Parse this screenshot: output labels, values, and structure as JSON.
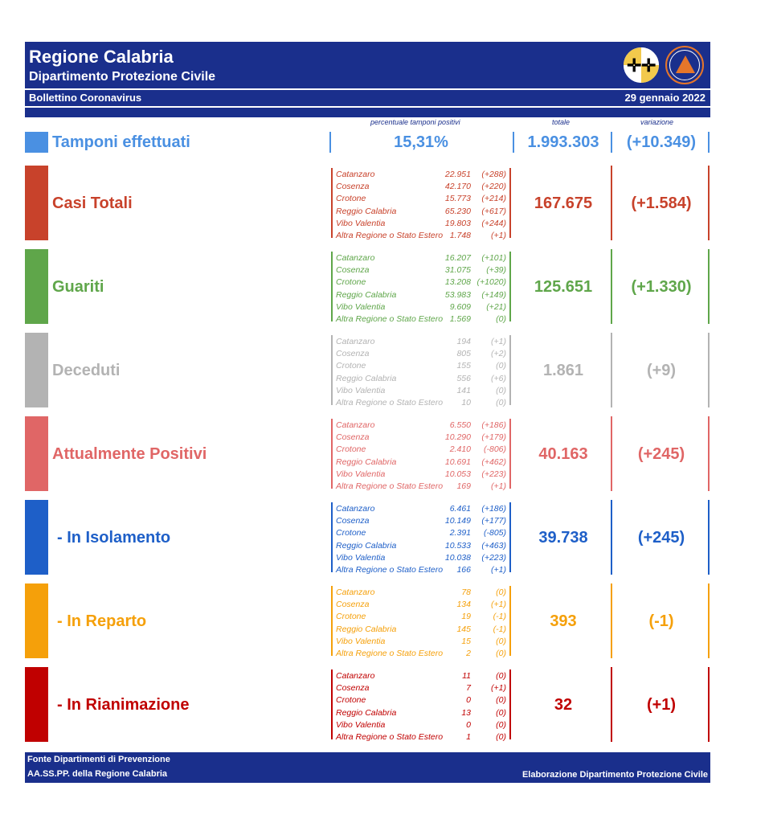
{
  "header": {
    "title": "Regione Calabria",
    "subtitle": "Dipartimento Protezione Civile",
    "bulletin": "Bollettino Coronavirus",
    "date": "29 gennaio 2022",
    "logo_text": "PROTEZIONE CIVILE"
  },
  "columns": {
    "pct_label": "percentuale tamponi positivi",
    "total_label": "totale",
    "variation_label": "variazione"
  },
  "tamponi": {
    "label": "Tamponi effettuati",
    "pct": "15,31%",
    "total": "1.993.303",
    "variation": "(+10.349)",
    "color": "#4a90e2"
  },
  "sections": [
    {
      "label": "Casi Totali",
      "total": "167.675",
      "variation": "(+1.584)",
      "color": "#c8422b",
      "rows": [
        {
          "name": "Catanzaro",
          "value": "22.951",
          "delta": "(+288)"
        },
        {
          "name": "Cosenza",
          "value": "42.170",
          "delta": "(+220)"
        },
        {
          "name": "Crotone",
          "value": "15.773",
          "delta": "(+214)"
        },
        {
          "name": "Reggio Calabria",
          "value": "65.230",
          "delta": "(+617)"
        },
        {
          "name": "Vibo Valentia",
          "value": "19.803",
          "delta": "(+244)"
        },
        {
          "name": "Altra Regione o Stato Estero",
          "value": "1.748",
          "delta": "(+1)"
        }
      ]
    },
    {
      "label": "Guariti",
      "total": "125.651",
      "variation": "(+1.330)",
      "color": "#5fa64a",
      "rows": [
        {
          "name": "Catanzaro",
          "value": "16.207",
          "delta": "(+101)"
        },
        {
          "name": "Cosenza",
          "value": "31.075",
          "delta": "(+39)"
        },
        {
          "name": "Crotone",
          "value": "13.208",
          "delta": "(+1020)"
        },
        {
          "name": "Reggio Calabria",
          "value": "53.983",
          "delta": "(+149)"
        },
        {
          "name": "Vibo Valentia",
          "value": "9.609",
          "delta": "(+21)"
        },
        {
          "name": "Altra Regione o Stato Estero",
          "value": "1.569",
          "delta": "(0)"
        }
      ]
    },
    {
      "label": "Deceduti",
      "total": "1.861",
      "variation": "(+9)",
      "color": "#b3b3b3",
      "rows": [
        {
          "name": "Catanzaro",
          "value": "194",
          "delta": "(+1)"
        },
        {
          "name": "Cosenza",
          "value": "805",
          "delta": "(+2)"
        },
        {
          "name": "Crotone",
          "value": "155",
          "delta": "(0)"
        },
        {
          "name": "Reggio Calabria",
          "value": "556",
          "delta": "(+6)"
        },
        {
          "name": "Vibo Valentia",
          "value": "141",
          "delta": "(0)"
        },
        {
          "name": "Altra Regione o Stato Estero",
          "value": "10",
          "delta": "(0)"
        }
      ]
    },
    {
      "label": "Attualmente Positivi",
      "total": "40.163",
      "variation": "(+245)",
      "color": "#e06666",
      "rows": [
        {
          "name": "Catanzaro",
          "value": "6.550",
          "delta": "(+186)"
        },
        {
          "name": "Cosenza",
          "value": "10.290",
          "delta": "(+179)"
        },
        {
          "name": "Crotone",
          "value": "2.410",
          "delta": "(-806)"
        },
        {
          "name": "Reggio Calabria",
          "value": "10.691",
          "delta": "(+462)"
        },
        {
          "name": "Vibo Valentia",
          "value": "10.053",
          "delta": "(+223)"
        },
        {
          "name": "Altra Regione o Stato Estero",
          "value": "169",
          "delta": "(+1)"
        }
      ]
    },
    {
      "label": "- In Isolamento",
      "total": "39.738",
      "variation": "(+245)",
      "color": "#1e5fc8",
      "indent": true,
      "rows": [
        {
          "name": "Catanzaro",
          "value": "6.461",
          "delta": "(+186)"
        },
        {
          "name": "Cosenza",
          "value": "10.149",
          "delta": "(+177)"
        },
        {
          "name": "Crotone",
          "value": "2.391",
          "delta": "(-805)"
        },
        {
          "name": "Reggio Calabria",
          "value": "10.533",
          "delta": "(+463)"
        },
        {
          "name": "Vibo Valentia",
          "value": "10.038",
          "delta": "(+223)"
        },
        {
          "name": "Altra Regione o Stato Estero",
          "value": "166",
          "delta": "(+1)"
        }
      ]
    },
    {
      "label": "- In Reparto",
      "total": "393",
      "variation": "(-1)",
      "color": "#f5a00a",
      "indent": true,
      "rows": [
        {
          "name": "Catanzaro",
          "value": "78",
          "delta": "(0)"
        },
        {
          "name": "Cosenza",
          "value": "134",
          "delta": "(+1)"
        },
        {
          "name": "Crotone",
          "value": "19",
          "delta": "(-1)"
        },
        {
          "name": "Reggio Calabria",
          "value": "145",
          "delta": "(-1)"
        },
        {
          "name": "Vibo Valentia",
          "value": "15",
          "delta": "(0)"
        },
        {
          "name": "Altra Regione o Stato Estero",
          "value": "2",
          "delta": "(0)"
        }
      ]
    },
    {
      "label": "- In Rianimazione",
      "total": "32",
      "variation": "(+1)",
      "color": "#c00000",
      "indent": true,
      "rows": [
        {
          "name": "Catanzaro",
          "value": "11",
          "delta": "(0)"
        },
        {
          "name": "Cosenza",
          "value": "7",
          "delta": "(+1)"
        },
        {
          "name": "Crotone",
          "value": "0",
          "delta": "(0)"
        },
        {
          "name": "Reggio Calabria",
          "value": "13",
          "delta": "(0)"
        },
        {
          "name": "Vibo Valentia",
          "value": "0",
          "delta": "(0)"
        },
        {
          "name": "Altra Regione o Stato Estero",
          "value": "1",
          "delta": "(0)"
        }
      ]
    }
  ],
  "footer": {
    "line1": "Fonte Dipartimenti di Prevenzione",
    "line2": "AA.SS.PP.  della Regione Calabria",
    "credit": "Elaborazione Dipartimento Protezione Civile"
  }
}
